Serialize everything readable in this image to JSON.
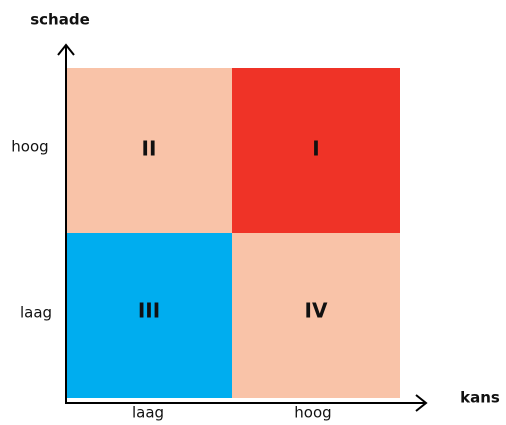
{
  "axes": {
    "y_label": "schade",
    "x_label": "kans",
    "y_ticks": [
      "hoog",
      "laag"
    ],
    "x_ticks": [
      "laag",
      "hoog"
    ]
  },
  "quadrants": [
    {
      "label": "II"
    },
    {
      "label": "I"
    },
    {
      "label": "III"
    },
    {
      "label": "IV"
    }
  ]
}
